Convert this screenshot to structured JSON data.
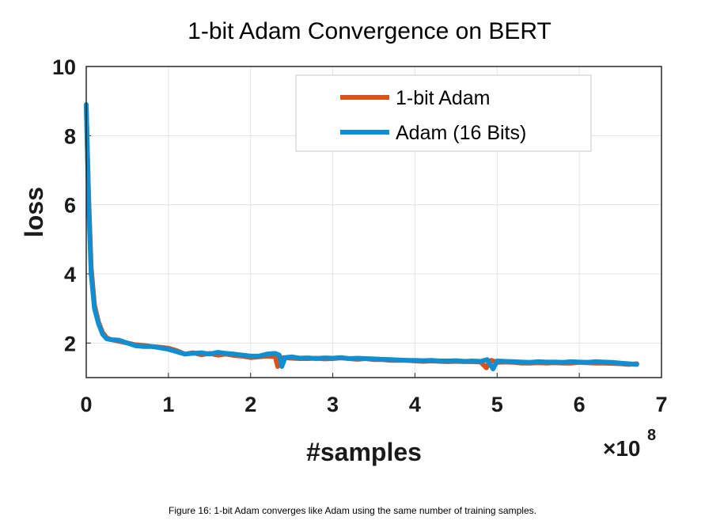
{
  "chart_data": {
    "type": "line",
    "title": "1-bit Adam Convergence on BERT",
    "xlabel": "#samples",
    "ylabel": "loss",
    "x_multiplier": {
      "base": "×10",
      "exponent": "8"
    },
    "xlim": [
      0,
      7
    ],
    "ylim": [
      1,
      10
    ],
    "xticks": [
      "0",
      "1",
      "2",
      "3",
      "4",
      "5",
      "6",
      "7"
    ],
    "yticks": [
      "2",
      "4",
      "6",
      "8",
      "10"
    ],
    "grid": true,
    "legend_position": "top-right",
    "series": [
      {
        "name": "1-bit Adam",
        "color": "#d95319",
        "x": [
          0.0,
          0.03,
          0.06,
          0.1,
          0.15,
          0.2,
          0.25,
          0.3,
          0.4,
          0.5,
          0.6,
          0.7,
          0.8,
          0.9,
          1.0,
          1.1,
          1.2,
          1.3,
          1.4,
          1.5,
          1.6,
          1.7,
          1.8,
          1.9,
          2.0,
          2.1,
          2.2,
          2.3,
          2.33,
          2.36,
          2.4,
          2.5,
          2.6,
          2.7,
          2.8,
          2.9,
          3.0,
          3.1,
          3.2,
          3.3,
          3.4,
          3.5,
          3.6,
          3.7,
          3.8,
          3.9,
          4.0,
          4.1,
          4.2,
          4.3,
          4.4,
          4.5,
          4.6,
          4.7,
          4.8,
          4.87,
          4.9,
          4.93,
          5.0,
          5.1,
          5.2,
          5.3,
          5.4,
          5.5,
          5.6,
          5.7,
          5.8,
          5.9,
          6.0,
          6.1,
          6.2,
          6.3,
          6.4,
          6.5,
          6.6,
          6.7
        ],
        "y": [
          8.8,
          6.2,
          4.2,
          3.1,
          2.6,
          2.3,
          2.15,
          2.1,
          2.05,
          2.0,
          1.95,
          1.93,
          1.9,
          1.88,
          1.85,
          1.78,
          1.68,
          1.72,
          1.66,
          1.7,
          1.65,
          1.68,
          1.64,
          1.62,
          1.58,
          1.6,
          1.62,
          1.6,
          1.32,
          1.55,
          1.58,
          1.56,
          1.55,
          1.55,
          1.56,
          1.54,
          1.55,
          1.57,
          1.55,
          1.53,
          1.55,
          1.52,
          1.52,
          1.5,
          1.5,
          1.5,
          1.48,
          1.47,
          1.48,
          1.47,
          1.46,
          1.47,
          1.46,
          1.46,
          1.45,
          1.28,
          1.45,
          1.5,
          1.44,
          1.45,
          1.44,
          1.42,
          1.42,
          1.43,
          1.42,
          1.43,
          1.42,
          1.42,
          1.44,
          1.43,
          1.42,
          1.42,
          1.41,
          1.4,
          1.38,
          1.4
        ]
      },
      {
        "name": "Adam (16 Bits)",
        "color": "#0f8fd1",
        "x": [
          0.0,
          0.03,
          0.06,
          0.1,
          0.15,
          0.2,
          0.25,
          0.3,
          0.4,
          0.5,
          0.6,
          0.7,
          0.8,
          0.9,
          1.0,
          1.1,
          1.2,
          1.3,
          1.4,
          1.5,
          1.6,
          1.7,
          1.8,
          1.9,
          2.0,
          2.1,
          2.2,
          2.3,
          2.35,
          2.38,
          2.42,
          2.5,
          2.6,
          2.7,
          2.8,
          2.9,
          3.0,
          3.1,
          3.2,
          3.3,
          3.4,
          3.5,
          3.6,
          3.7,
          3.8,
          3.9,
          4.0,
          4.1,
          4.2,
          4.3,
          4.4,
          4.5,
          4.6,
          4.7,
          4.8,
          4.88,
          4.95,
          5.0,
          5.1,
          5.2,
          5.3,
          5.4,
          5.5,
          5.6,
          5.7,
          5.8,
          5.9,
          6.0,
          6.1,
          6.2,
          6.3,
          6.4,
          6.5,
          6.6,
          6.7
        ],
        "y": [
          8.9,
          6.0,
          4.0,
          3.0,
          2.55,
          2.25,
          2.12,
          2.1,
          2.08,
          2.0,
          1.92,
          1.9,
          1.9,
          1.86,
          1.82,
          1.75,
          1.68,
          1.7,
          1.72,
          1.68,
          1.73,
          1.7,
          1.68,
          1.65,
          1.62,
          1.62,
          1.68,
          1.7,
          1.65,
          1.32,
          1.58,
          1.6,
          1.56,
          1.57,
          1.55,
          1.57,
          1.56,
          1.58,
          1.55,
          1.56,
          1.55,
          1.54,
          1.53,
          1.52,
          1.51,
          1.5,
          1.5,
          1.49,
          1.5,
          1.48,
          1.48,
          1.49,
          1.47,
          1.48,
          1.47,
          1.52,
          1.25,
          1.48,
          1.47,
          1.46,
          1.45,
          1.44,
          1.46,
          1.45,
          1.45,
          1.44,
          1.46,
          1.45,
          1.44,
          1.46,
          1.45,
          1.44,
          1.42,
          1.4,
          1.38
        ]
      }
    ]
  },
  "caption": "Figure 16: 1-bit Adam converges like Adam using the same number of training samples."
}
